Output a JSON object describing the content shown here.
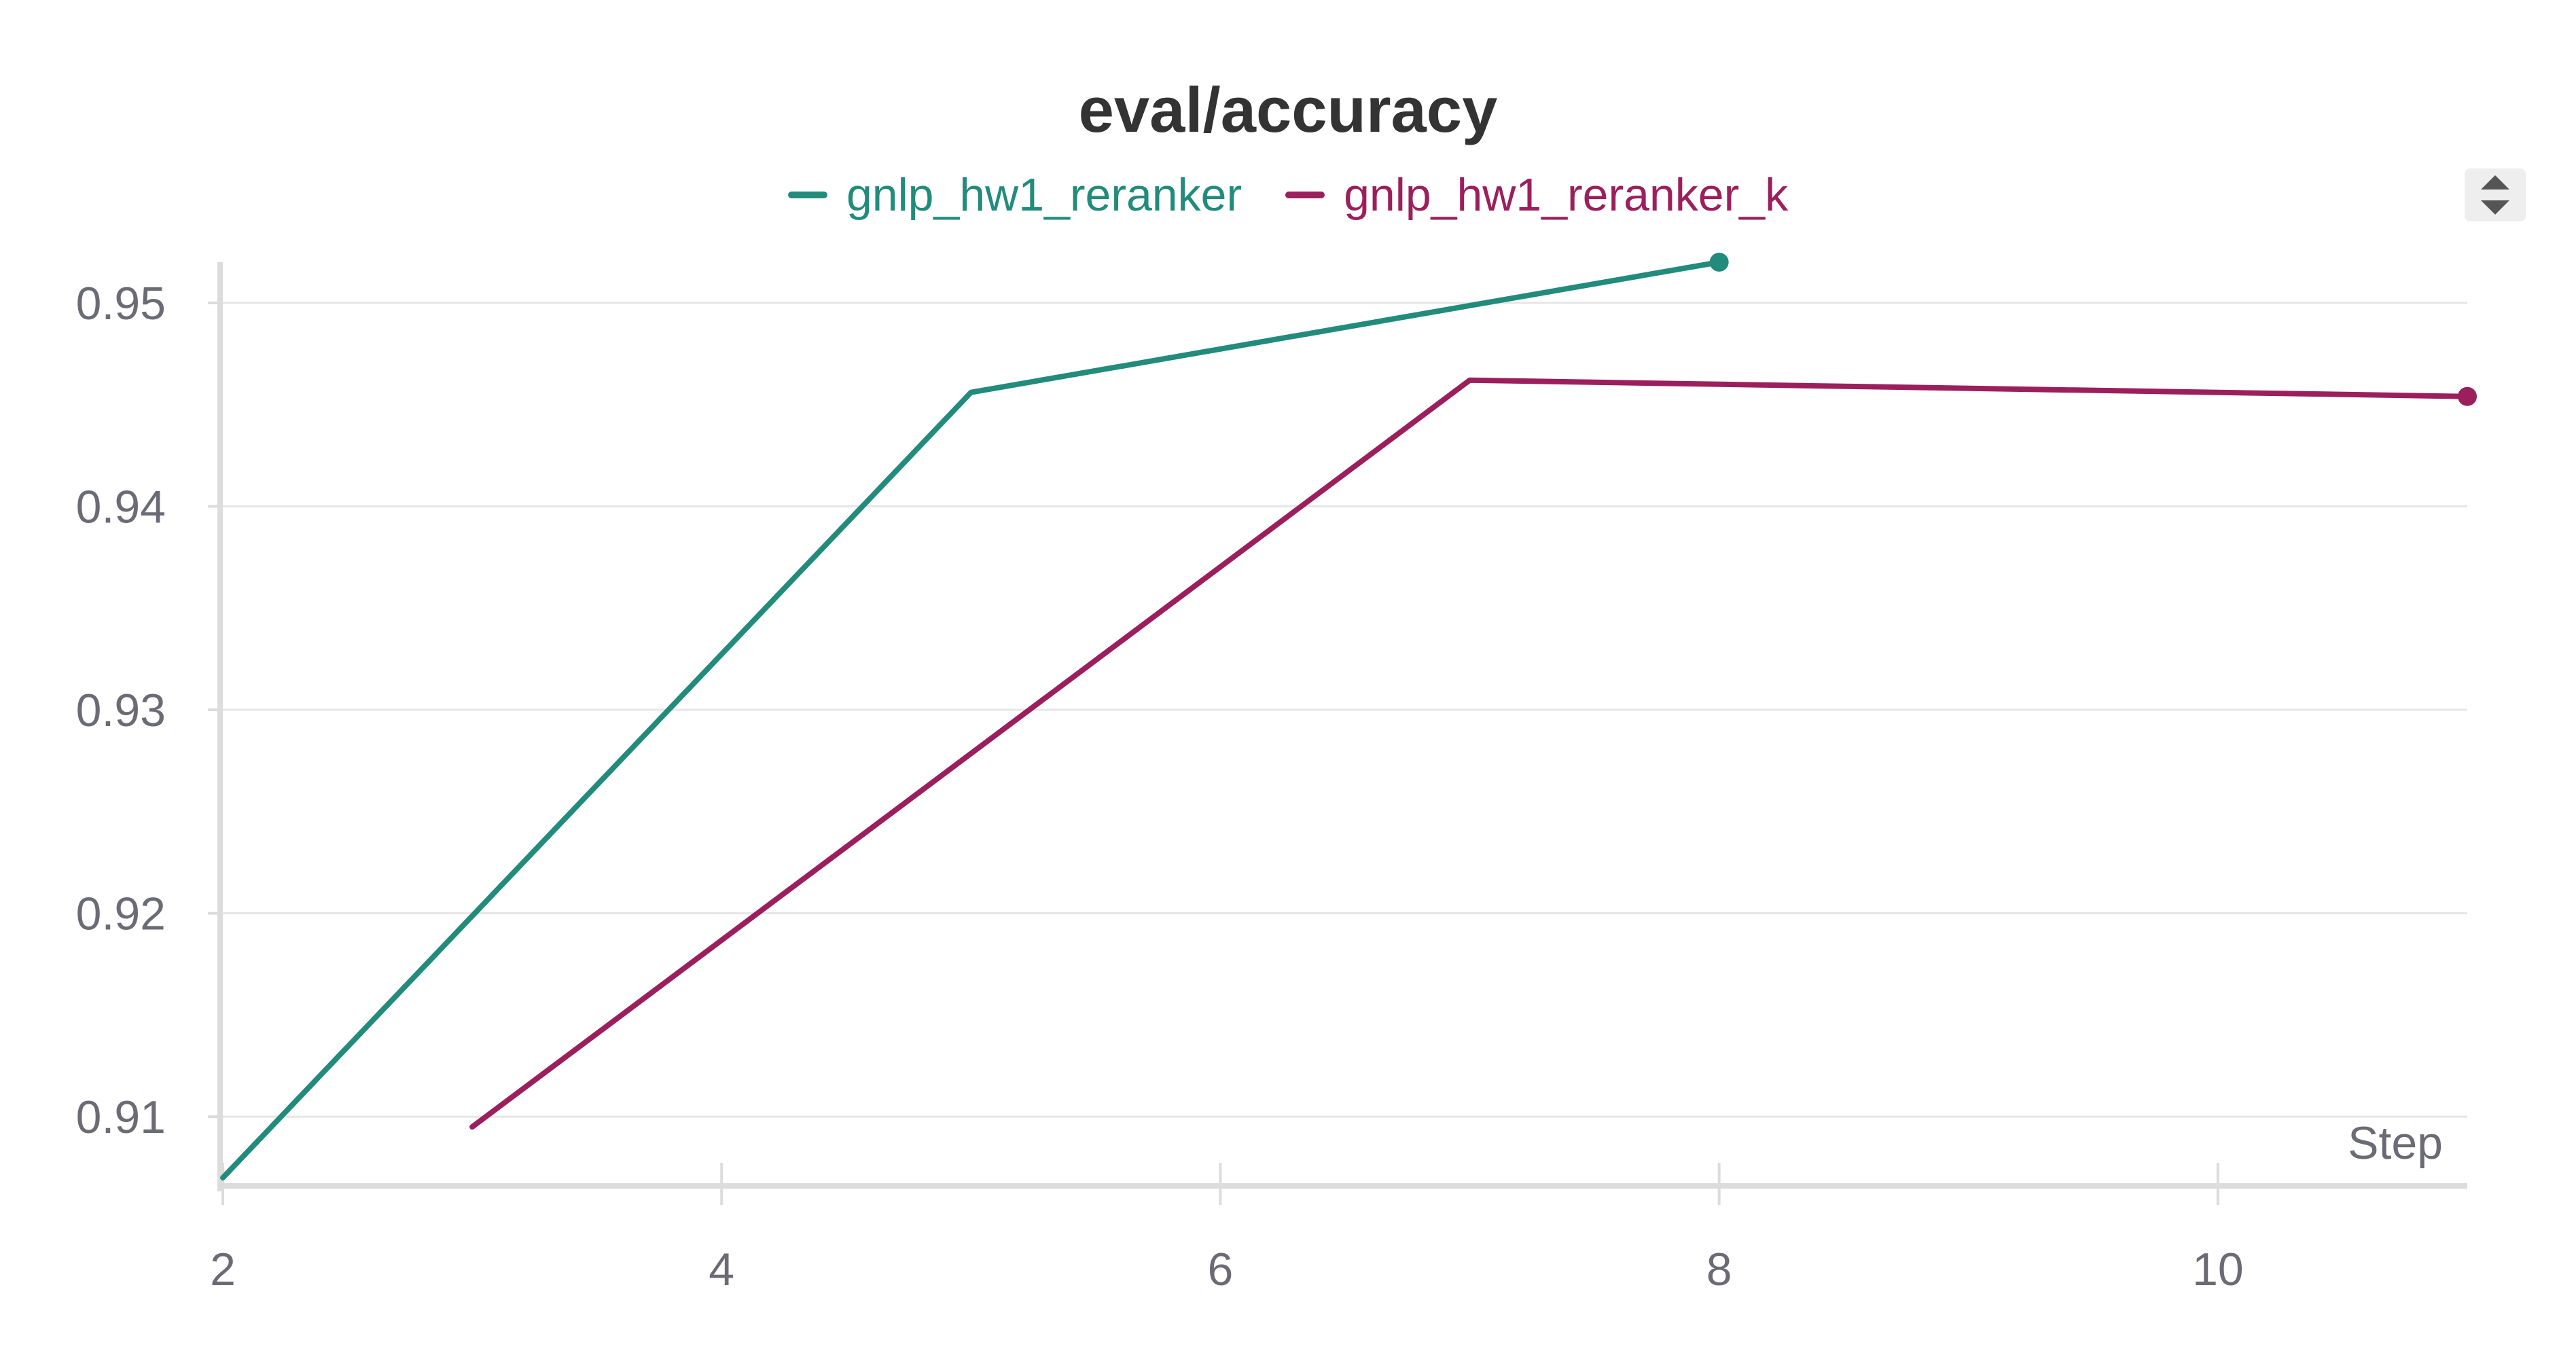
{
  "chart_data": {
    "type": "line",
    "title": "eval/accuracy",
    "xlabel": "Step",
    "ylabel": "",
    "xlim": [
      2,
      11
    ],
    "ylim": [
      0.9068,
      0.952
    ],
    "x_ticks": [
      2,
      4,
      6,
      8,
      10
    ],
    "y_ticks": [
      0.91,
      0.92,
      0.93,
      0.94,
      0.95
    ],
    "grid": "horizontal",
    "legend_position": "top-center",
    "series": [
      {
        "name": "gnlp_hw1_reranker",
        "color": "#228b7c",
        "x": [
          2,
          5,
          8
        ],
        "y": [
          0.907,
          0.9456,
          0.952
        ]
      },
      {
        "name": "gnlp_hw1_reranker_k",
        "color": "#9c1f5d",
        "x": [
          3,
          7,
          11
        ],
        "y": [
          0.9095,
          0.9462,
          0.9454
        ]
      }
    ]
  }
}
